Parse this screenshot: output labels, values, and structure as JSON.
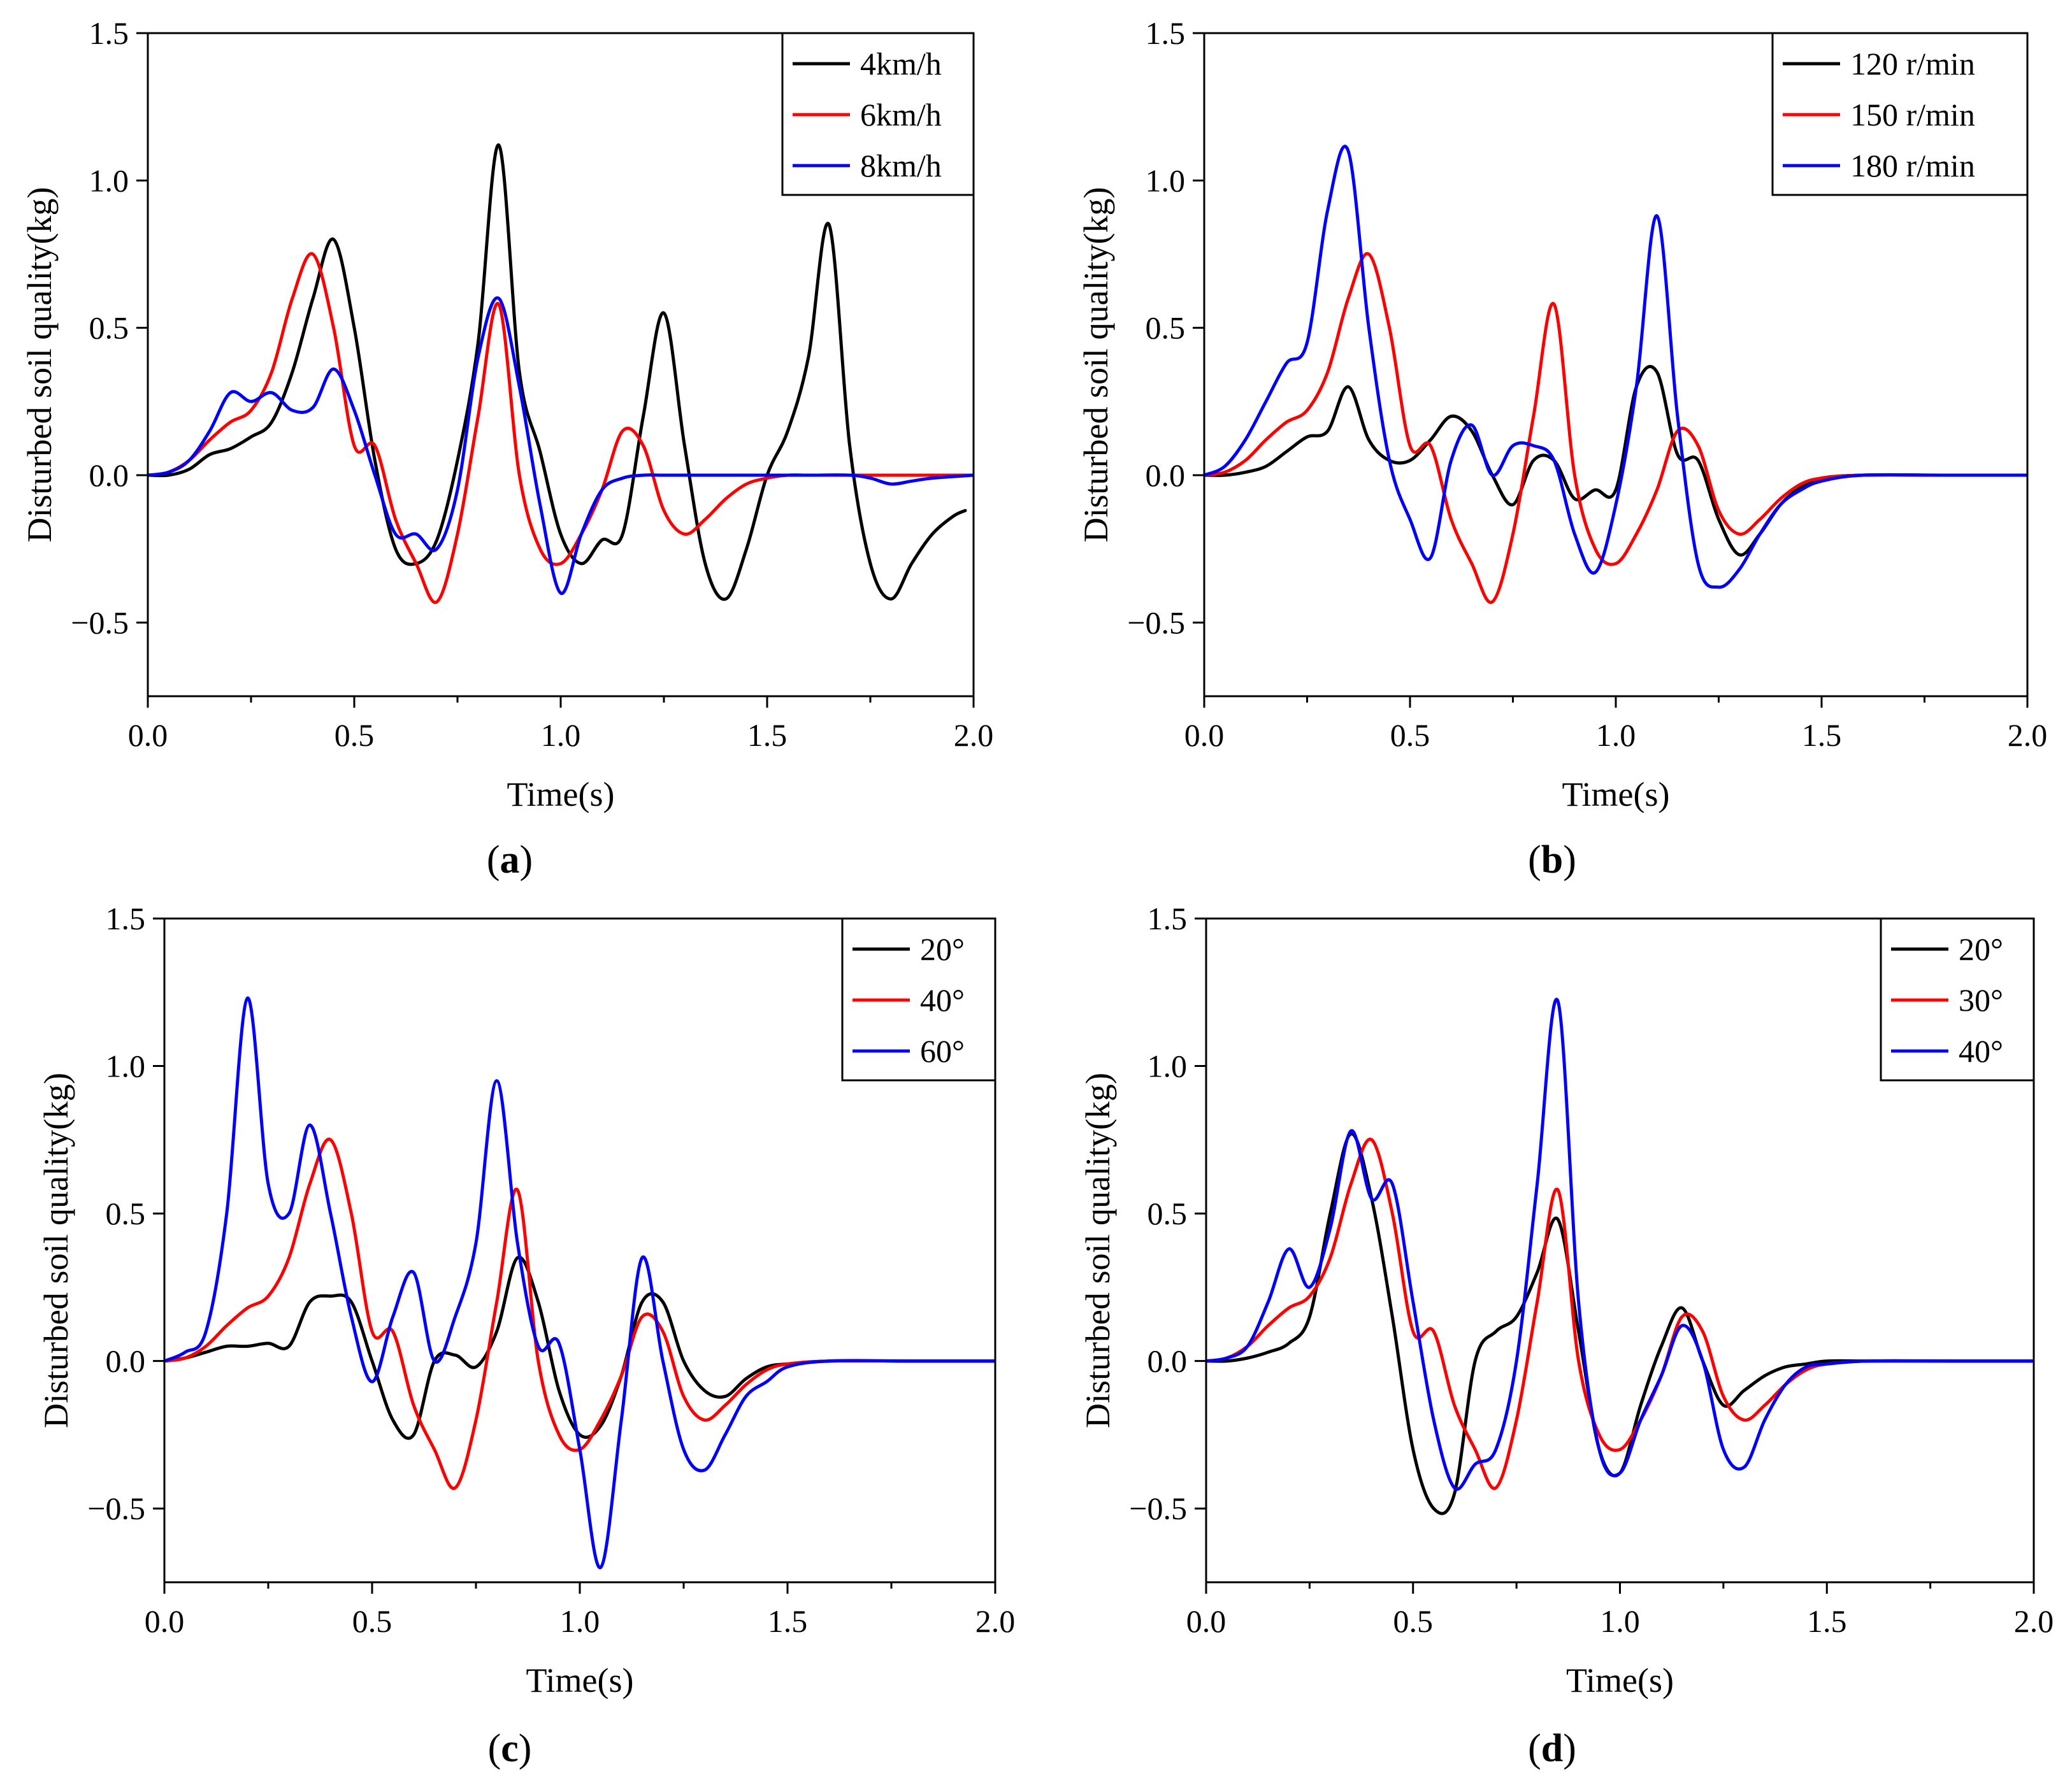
{
  "chart_data": [
    {
      "type": "line",
      "caption": "a",
      "xlabel": "Time(s)",
      "ylabel": "Disturbed soil quality(kg)",
      "xlim": [
        0.0,
        2.0
      ],
      "ylim": [
        -0.75,
        1.5
      ],
      "xticks": [
        "0.0",
        "0.5",
        "1.0",
        "1.5",
        "2.0"
      ],
      "yticks": [
        "1.5",
        "1.0",
        "0.5",
        "0.0",
        "−0.5"
      ],
      "legend_position": "top-right",
      "series": [
        {
          "name": "4km/h",
          "color": "#000000",
          "x": [
            0,
            0.05,
            0.1,
            0.15,
            0.2,
            0.25,
            0.3,
            0.35,
            0.4,
            0.45,
            0.5,
            0.55,
            0.6,
            0.65,
            0.7,
            0.75,
            0.8,
            0.85,
            0.9,
            0.95,
            1.0,
            1.05,
            1.1,
            1.15,
            1.2,
            1.25,
            1.3,
            1.35,
            1.4,
            1.45,
            1.5,
            1.55,
            1.6,
            1.65,
            1.7,
            1.75,
            1.8,
            1.85,
            1.9,
            1.95,
            1.98
          ],
          "y": [
            0,
            0,
            0.02,
            0.07,
            0.09,
            0.13,
            0.18,
            0.35,
            0.6,
            0.8,
            0.5,
            0.05,
            -0.25,
            -0.3,
            -0.22,
            0.05,
            0.45,
            1.12,
            0.35,
            0.08,
            -0.2,
            -0.3,
            -0.22,
            -0.2,
            0.2,
            0.55,
            0.1,
            -0.3,
            -0.42,
            -0.25,
            0,
            0.15,
            0.4,
            0.85,
            0.1,
            -0.3,
            -0.42,
            -0.3,
            -0.2,
            -0.14,
            -0.12
          ]
        },
        {
          "name": "6km/h",
          "color": "#ff0000",
          "x": [
            0,
            0.05,
            0.1,
            0.15,
            0.2,
            0.25,
            0.3,
            0.35,
            0.4,
            0.45,
            0.5,
            0.55,
            0.6,
            0.65,
            0.7,
            0.75,
            0.8,
            0.85,
            0.9,
            0.95,
            1.0,
            1.05,
            1.1,
            1.15,
            1.2,
            1.25,
            1.3,
            1.35,
            1.4,
            1.45,
            1.5,
            1.55,
            1.6,
            1.65,
            1.7,
            1.8,
            1.9,
            2.0
          ],
          "y": [
            0,
            0.01,
            0.05,
            0.12,
            0.18,
            0.22,
            0.35,
            0.6,
            0.75,
            0.5,
            0.1,
            0.1,
            -0.15,
            -0.3,
            -0.43,
            -0.2,
            0.2,
            0.58,
            0,
            -0.25,
            -0.3,
            -0.2,
            -0.05,
            0.15,
            0.1,
            -0.12,
            -0.2,
            -0.15,
            -0.08,
            -0.03,
            -0.01,
            0,
            0,
            0,
            0,
            0,
            0,
            0
          ]
        },
        {
          "name": "8km/h",
          "color": "#0000ff",
          "x": [
            0,
            0.05,
            0.1,
            0.15,
            0.2,
            0.25,
            0.3,
            0.35,
            0.4,
            0.45,
            0.5,
            0.55,
            0.6,
            0.65,
            0.7,
            0.75,
            0.8,
            0.85,
            0.9,
            0.95,
            1.0,
            1.05,
            1.1,
            1.15,
            1.2,
            1.25,
            1.3,
            1.35,
            1.4,
            1.5,
            1.6,
            1.7,
            1.75,
            1.8,
            1.85,
            1.9,
            2.0
          ],
          "y": [
            0,
            0.01,
            0.05,
            0.15,
            0.28,
            0.25,
            0.28,
            0.22,
            0.23,
            0.36,
            0.22,
            0,
            -0.2,
            -0.2,
            -0.25,
            -0.05,
            0.4,
            0.6,
            0.3,
            -0.1,
            -0.4,
            -0.2,
            -0.05,
            -0.01,
            0,
            0,
            0,
            0,
            0,
            0,
            0,
            0,
            -0.01,
            -0.03,
            -0.02,
            -0.01,
            0
          ]
        }
      ]
    },
    {
      "type": "line",
      "caption": "b",
      "xlabel": "Time(s)",
      "ylabel": "Disturbed soil quality(kg)",
      "xlim": [
        0.0,
        2.0
      ],
      "ylim": [
        -0.75,
        1.5
      ],
      "xticks": [
        "0.0",
        "0.5",
        "1.0",
        "1.5",
        "2.0"
      ],
      "yticks": [
        "1.5",
        "1.0",
        "0.5",
        "0.0",
        "−0.5"
      ],
      "legend_position": "top-right",
      "series": [
        {
          "name": "120 r/min",
          "color": "#000000",
          "x": [
            0,
            0.05,
            0.1,
            0.15,
            0.2,
            0.25,
            0.3,
            0.35,
            0.4,
            0.45,
            0.5,
            0.55,
            0.6,
            0.65,
            0.7,
            0.75,
            0.8,
            0.85,
            0.9,
            0.95,
            1.0,
            1.05,
            1.1,
            1.15,
            1.2,
            1.25,
            1.3,
            1.35,
            1.4,
            1.45,
            1.5,
            1.6,
            1.8,
            2.0
          ],
          "y": [
            0,
            0,
            0.01,
            0.03,
            0.08,
            0.13,
            0.15,
            0.3,
            0.12,
            0.05,
            0.05,
            0.12,
            0.2,
            0.15,
            0,
            -0.1,
            0.05,
            0.05,
            -0.08,
            -0.05,
            -0.05,
            0.3,
            0.35,
            0.07,
            0.05,
            -0.15,
            -0.27,
            -0.2,
            -0.1,
            -0.04,
            -0.01,
            0,
            0,
            0
          ]
        },
        {
          "name": "150 r/min",
          "color": "#ff0000",
          "x": [
            0,
            0.05,
            0.1,
            0.15,
            0.2,
            0.25,
            0.3,
            0.35,
            0.4,
            0.45,
            0.5,
            0.55,
            0.6,
            0.65,
            0.7,
            0.75,
            0.8,
            0.85,
            0.9,
            0.95,
            1.0,
            1.05,
            1.1,
            1.15,
            1.2,
            1.25,
            1.3,
            1.35,
            1.4,
            1.45,
            1.5,
            1.6,
            1.8,
            2.0
          ],
          "y": [
            0,
            0.01,
            0.05,
            0.12,
            0.18,
            0.22,
            0.35,
            0.6,
            0.75,
            0.5,
            0.1,
            0.1,
            -0.15,
            -0.3,
            -0.43,
            -0.2,
            0.2,
            0.58,
            0,
            -0.25,
            -0.3,
            -0.2,
            -0.05,
            0.15,
            0.1,
            -0.12,
            -0.2,
            -0.15,
            -0.08,
            -0.03,
            -0.01,
            0,
            0,
            0
          ]
        },
        {
          "name": "180 r/min",
          "color": "#0000ff",
          "x": [
            0,
            0.05,
            0.1,
            0.15,
            0.2,
            0.25,
            0.3,
            0.35,
            0.4,
            0.45,
            0.5,
            0.55,
            0.6,
            0.65,
            0.7,
            0.75,
            0.8,
            0.85,
            0.9,
            0.95,
            1.0,
            1.05,
            1.1,
            1.15,
            1.2,
            1.25,
            1.3,
            1.35,
            1.4,
            1.45,
            1.5,
            1.6,
            1.8,
            2.0
          ],
          "y": [
            0,
            0.03,
            0.12,
            0.25,
            0.38,
            0.45,
            0.9,
            1.1,
            0.5,
            0.05,
            -0.15,
            -0.28,
            0.05,
            0.17,
            0,
            0.1,
            0.1,
            0.05,
            -0.2,
            -0.33,
            -0.1,
            0.3,
            0.88,
            0.2,
            -0.3,
            -0.38,
            -0.32,
            -0.2,
            -0.1,
            -0.05,
            -0.02,
            0,
            0,
            0
          ]
        }
      ]
    },
    {
      "type": "line",
      "caption": "c",
      "xlabel": "Time(s)",
      "ylabel": "Disturbed soil quality(kg)",
      "xlim": [
        0.0,
        2.0
      ],
      "ylim": [
        -0.75,
        1.5
      ],
      "xticks": [
        "0.0",
        "0.5",
        "1.0",
        "1.5",
        "2.0"
      ],
      "yticks": [
        "1.5",
        "1.0",
        "0.5",
        "0.0",
        "−0.5"
      ],
      "legend_position": "top-right",
      "series": [
        {
          "name": "20°",
          "color": "#000000",
          "x": [
            0,
            0.05,
            0.1,
            0.15,
            0.2,
            0.25,
            0.3,
            0.35,
            0.4,
            0.45,
            0.5,
            0.55,
            0.6,
            0.65,
            0.7,
            0.75,
            0.8,
            0.85,
            0.9,
            0.95,
            1.0,
            1.05,
            1.1,
            1.15,
            1.2,
            1.25,
            1.3,
            1.35,
            1.4,
            1.45,
            1.5,
            1.6,
            1.8,
            2.0
          ],
          "y": [
            0,
            0.01,
            0.03,
            0.05,
            0.05,
            0.06,
            0.05,
            0.2,
            0.22,
            0.2,
            0,
            -0.2,
            -0.25,
            0,
            0.02,
            -0.02,
            0.1,
            0.35,
            0.2,
            -0.1,
            -0.25,
            -0.22,
            -0.05,
            0.2,
            0.2,
            0,
            -0.1,
            -0.12,
            -0.06,
            -0.02,
            -0.01,
            0,
            0,
            0
          ]
        },
        {
          "name": "40°",
          "color": "#ff0000",
          "x": [
            0,
            0.05,
            0.1,
            0.15,
            0.2,
            0.25,
            0.3,
            0.35,
            0.4,
            0.45,
            0.5,
            0.55,
            0.6,
            0.65,
            0.7,
            0.75,
            0.8,
            0.85,
            0.9,
            0.95,
            1.0,
            1.05,
            1.1,
            1.15,
            1.2,
            1.25,
            1.3,
            1.35,
            1.4,
            1.45,
            1.5,
            1.6,
            1.8,
            2.0
          ],
          "y": [
            0,
            0.01,
            0.05,
            0.12,
            0.18,
            0.22,
            0.35,
            0.6,
            0.75,
            0.5,
            0.1,
            0.1,
            -0.15,
            -0.3,
            -0.43,
            -0.2,
            0.2,
            0.58,
            0,
            -0.25,
            -0.3,
            -0.2,
            -0.05,
            0.15,
            0.1,
            -0.12,
            -0.2,
            -0.15,
            -0.08,
            -0.03,
            -0.01,
            0,
            0,
            0
          ]
        },
        {
          "name": "60°",
          "color": "#0000ff",
          "x": [
            0,
            0.05,
            0.1,
            0.15,
            0.2,
            0.25,
            0.3,
            0.35,
            0.4,
            0.45,
            0.5,
            0.55,
            0.6,
            0.65,
            0.7,
            0.75,
            0.8,
            0.85,
            0.9,
            0.95,
            1.0,
            1.05,
            1.1,
            1.15,
            1.2,
            1.25,
            1.3,
            1.35,
            1.4,
            1.45,
            1.5,
            1.6,
            1.8,
            2.0
          ],
          "y": [
            0,
            0.03,
            0.1,
            0.5,
            1.23,
            0.6,
            0.5,
            0.8,
            0.5,
            0.15,
            -0.07,
            0.15,
            0.3,
            0,
            0.15,
            0.4,
            0.95,
            0.4,
            0.05,
            0.06,
            -0.3,
            -0.7,
            -0.2,
            0.35,
            0,
            -0.3,
            -0.37,
            -0.25,
            -0.12,
            -0.07,
            -0.02,
            0,
            0,
            0
          ]
        }
      ]
    },
    {
      "type": "line",
      "caption": "d",
      "xlabel": "Time(s)",
      "ylabel": "Disturbed soil quality(kg)",
      "xlim": [
        0.0,
        2.0
      ],
      "ylim": [
        -0.75,
        1.5
      ],
      "xticks": [
        "0.0",
        "0.5",
        "1.0",
        "1.5",
        "2.0"
      ],
      "yticks": [
        "1.5",
        "1.0",
        "0.5",
        "0.0",
        "−0.5"
      ],
      "legend_position": "top-right",
      "series": [
        {
          "name": "20°",
          "color": "#000000",
          "x": [
            0,
            0.05,
            0.1,
            0.15,
            0.2,
            0.25,
            0.3,
            0.35,
            0.4,
            0.45,
            0.5,
            0.55,
            0.6,
            0.65,
            0.7,
            0.75,
            0.8,
            0.85,
            0.9,
            0.95,
            1.0,
            1.05,
            1.1,
            1.15,
            1.2,
            1.25,
            1.3,
            1.35,
            1.4,
            1.45,
            1.5,
            1.6,
            1.8,
            2.0
          ],
          "y": [
            0,
            0,
            0.01,
            0.03,
            0.06,
            0.15,
            0.5,
            0.77,
            0.55,
            0.15,
            -0.3,
            -0.5,
            -0.45,
            0,
            0.1,
            0.15,
            0.3,
            0.48,
            0.1,
            -0.3,
            -0.38,
            -0.15,
            0.05,
            0.18,
            0,
            -0.15,
            -0.1,
            -0.05,
            -0.02,
            -0.01,
            0,
            0,
            0,
            0
          ]
        },
        {
          "name": "30°",
          "color": "#ff0000",
          "x": [
            0,
            0.05,
            0.1,
            0.15,
            0.2,
            0.25,
            0.3,
            0.35,
            0.4,
            0.45,
            0.5,
            0.55,
            0.6,
            0.65,
            0.7,
            0.75,
            0.8,
            0.85,
            0.9,
            0.95,
            1.0,
            1.05,
            1.1,
            1.15,
            1.2,
            1.25,
            1.3,
            1.35,
            1.4,
            1.45,
            1.5,
            1.6,
            1.8,
            2.0
          ],
          "y": [
            0,
            0.01,
            0.05,
            0.12,
            0.18,
            0.22,
            0.35,
            0.6,
            0.75,
            0.5,
            0.1,
            0.1,
            -0.15,
            -0.3,
            -0.43,
            -0.2,
            0.2,
            0.58,
            0,
            -0.25,
            -0.3,
            -0.2,
            -0.05,
            0.15,
            0.1,
            -0.12,
            -0.2,
            -0.15,
            -0.08,
            -0.03,
            -0.01,
            0,
            0,
            0
          ]
        },
        {
          "name": "40°",
          "color": "#0000ff",
          "x": [
            0,
            0.05,
            0.1,
            0.15,
            0.2,
            0.25,
            0.3,
            0.35,
            0.4,
            0.45,
            0.5,
            0.55,
            0.6,
            0.65,
            0.7,
            0.75,
            0.8,
            0.85,
            0.9,
            0.95,
            1.0,
            1.05,
            1.1,
            1.15,
            1.2,
            1.25,
            1.3,
            1.35,
            1.4,
            1.45,
            1.5,
            1.6,
            1.8,
            2.0
          ],
          "y": [
            0,
            0.01,
            0.05,
            0.2,
            0.38,
            0.25,
            0.45,
            0.78,
            0.55,
            0.6,
            0.2,
            -0.2,
            -0.43,
            -0.35,
            -0.3,
            0,
            0.6,
            1.22,
            0.2,
            -0.3,
            -0.38,
            -0.2,
            -0.05,
            0.12,
            0,
            -0.3,
            -0.36,
            -0.2,
            -0.08,
            -0.02,
            -0.01,
            0,
            0,
            0
          ]
        }
      ]
    }
  ]
}
